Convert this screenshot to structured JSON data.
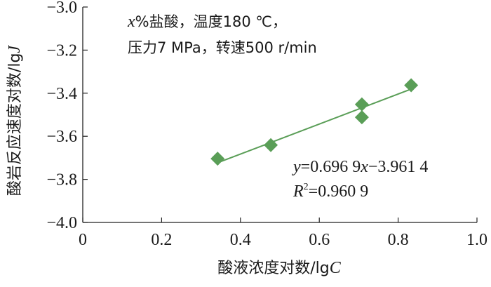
{
  "chart_data": {
    "type": "scatter",
    "xlabel": "酸液浓度对数/lg",
    "xlabel_var": "C",
    "ylabel": "酸岩反应速度对数/lg",
    "ylabel_var": "J",
    "xlim": [
      0,
      1.0
    ],
    "ylim": [
      -4.0,
      -3.0
    ],
    "x_ticks": [
      "0",
      "0.2",
      "0.4",
      "0.6",
      "0.8",
      "1.0"
    ],
    "y_ticks": [
      "−3.0",
      "−3.2",
      "−3.4",
      "−3.6",
      "−3.8",
      "−4.0"
    ],
    "x_tick_values": [
      0,
      0.2,
      0.4,
      0.6,
      0.8,
      1.0
    ],
    "y_tick_values": [
      -3.0,
      -3.2,
      -3.4,
      -3.6,
      -3.8,
      -4.0
    ],
    "grid": false,
    "marker": "diamond",
    "marker_color": "#5a9e57",
    "line_color": "#5a9e57",
    "points": [
      {
        "x": 0.342,
        "y": -3.704
      },
      {
        "x": 0.477,
        "y": -3.641
      },
      {
        "x": 0.708,
        "y": -3.452
      },
      {
        "x": 0.708,
        "y": -3.512
      },
      {
        "x": 0.833,
        "y": -3.363
      }
    ],
    "trendline": {
      "slope": 0.6969,
      "intercept": -3.9614,
      "x_range": [
        0.342,
        0.833
      ]
    },
    "annotation": {
      "line1_var": "x",
      "line1_text": "%盐酸，温度180 ℃，",
      "line2": "压力7 MPa，转速500 r/min"
    },
    "equation": {
      "y_var": "y",
      "y_rest": "=0.696 9",
      "x_var": "x",
      "x_rest": "−3.961 4",
      "r_var": "R",
      "r_sup": "2",
      "r_rest": "=0.960 9"
    }
  }
}
